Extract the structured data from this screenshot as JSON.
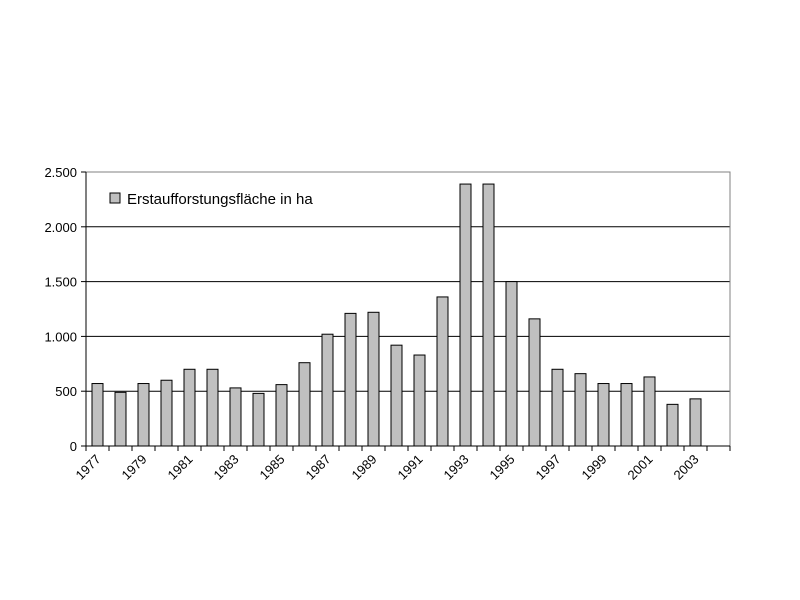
{
  "chart_data": {
    "type": "bar",
    "categories": [
      "1977",
      "1978",
      "1979",
      "1980",
      "1981",
      "1982",
      "1983",
      "1984",
      "1985",
      "1986",
      "1987",
      "1988",
      "1989",
      "1990",
      "1991",
      "1992",
      "1993",
      "1994",
      "1995",
      "1996",
      "1997",
      "1998",
      "1999",
      "2000",
      "2001",
      "2002",
      "2003",
      "2004"
    ],
    "x_tick_labels": [
      "1977",
      "1979",
      "1981",
      "1983",
      "1985",
      "1987",
      "1989",
      "1991",
      "1993",
      "1995",
      "1997",
      "1999",
      "2001",
      "2003"
    ],
    "series": [
      {
        "name": "Erstaufforstungsfläche in ha",
        "values": [
          570,
          490,
          570,
          600,
          700,
          700,
          530,
          480,
          560,
          760,
          1020,
          1210,
          1220,
          920,
          830,
          1360,
          2390,
          2390,
          1500,
          1160,
          700,
          660,
          570,
          570,
          630,
          380,
          430,
          0
        ]
      }
    ],
    "ylim": [
      0,
      2500
    ],
    "y_ticks": [
      0,
      500,
      1000,
      1500,
      2000,
      2500
    ],
    "y_tick_labels": [
      "0",
      "500",
      "1.000",
      "1.500",
      "2.000",
      "2.500"
    ],
    "grid": true,
    "legend_position": "top-left",
    "colors": {
      "bar_fill": "#c0c0c0",
      "bar_stroke": "#000000",
      "grid": "#000000",
      "plot_border": "#808080"
    }
  }
}
